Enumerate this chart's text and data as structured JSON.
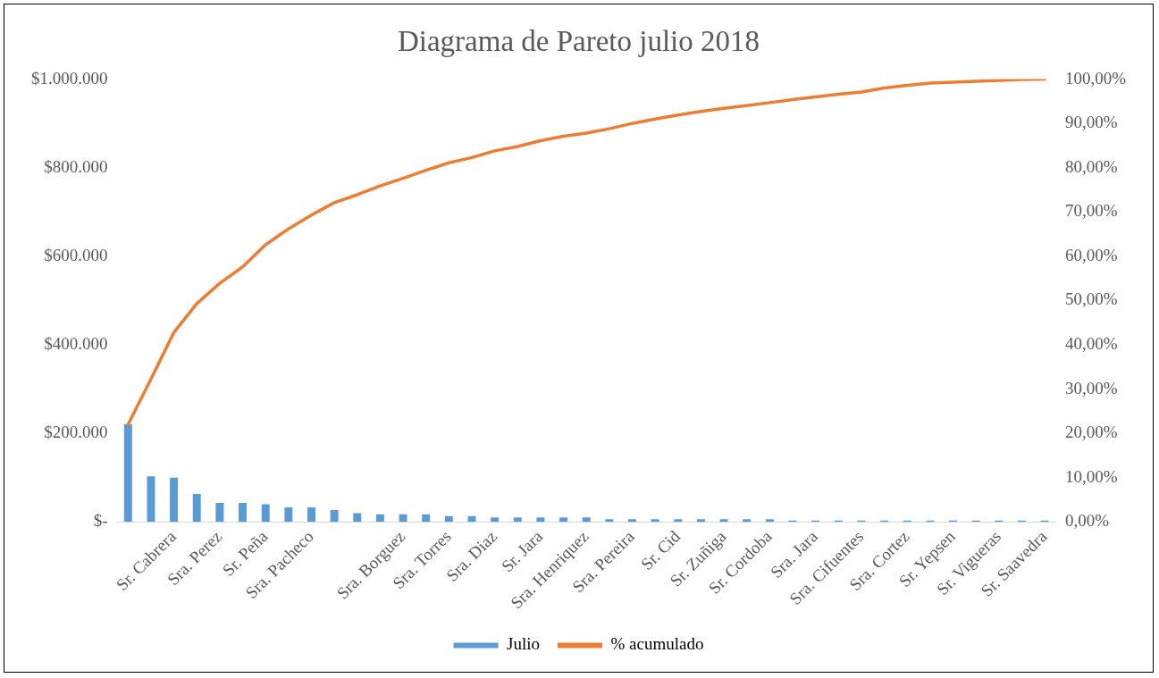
{
  "chart_data": {
    "type": "bar",
    "title": "Diagrama de Pareto julio 2018",
    "categories": [
      null,
      null,
      "Sr. Cabrera",
      null,
      "Sra. Perez",
      null,
      "Sr. Peña",
      null,
      "Sra. Pacheco",
      null,
      null,
      null,
      "Sra. Borguez",
      null,
      "Sra. Torres",
      null,
      "Sra. Diaz",
      null,
      "Sr. Jara",
      null,
      "Sra. Henriquez",
      null,
      "Sra. Pereira",
      null,
      "Sr. Cid",
      null,
      "Sr. Zuñiga",
      null,
      "Sr. Cordoba",
      null,
      "Sra. Jara",
      null,
      "Sra. Cifuentes",
      null,
      "Sra. Cortez",
      null,
      "Sr. Yepsen",
      null,
      "Sr. Vigueras",
      null,
      "Sr. Saavedra"
    ],
    "series": [
      {
        "name": "Julio",
        "color": "#5b9bd5",
        "values": [
          221000,
          103000,
          100000,
          63000,
          43000,
          43000,
          40000,
          33000,
          33000,
          27000,
          20000,
          17000,
          17000,
          17000,
          13000,
          13000,
          10000,
          10000,
          10000,
          10000,
          10000,
          6000,
          6000,
          6000,
          6000,
          6000,
          6000,
          6000,
          6000,
          3000,
          3000,
          3000,
          3000,
          3000,
          3000,
          3000,
          3000,
          3000,
          3000,
          3000,
          3000
        ]
      },
      {
        "name": "% acumulado",
        "type": "line",
        "axis": "y2",
        "color": "#ed7d31",
        "values": [
          22,
          32.3,
          42.8,
          49.3,
          53.9,
          57.6,
          62.6,
          66.2,
          69.3,
          72.1,
          73.9,
          75.9,
          77.6,
          79.4,
          81.1,
          82.3,
          83.8,
          84.8,
          86.1,
          87.1,
          87.8,
          88.8,
          90.0,
          91.0,
          91.9,
          92.7,
          93.4,
          94.0,
          94.7,
          95.4,
          96.0,
          96.6,
          97.1,
          98.0,
          98.6,
          99.1,
          99.3,
          99.5,
          99.7,
          99.9,
          100
        ]
      }
    ],
    "ylim": [
      0,
      1000000
    ],
    "yticks": [
      {
        "value": 0,
        "label": "$-"
      },
      {
        "value": 200000,
        "label": "$200.000"
      },
      {
        "value": 400000,
        "label": "$400.000"
      },
      {
        "value": 600000,
        "label": "$600.000"
      },
      {
        "value": 800000,
        "label": "$800.000"
      },
      {
        "value": 1000000,
        "label": "$1.000.000"
      }
    ],
    "y2lim": [
      0,
      100
    ],
    "y2ticks": [
      {
        "value": 0,
        "label": "0,00%"
      },
      {
        "value": 10,
        "label": "10,00%"
      },
      {
        "value": 20,
        "label": "20,00%"
      },
      {
        "value": 30,
        "label": "30,00%"
      },
      {
        "value": 40,
        "label": "40,00%"
      },
      {
        "value": 50,
        "label": "50,00%"
      },
      {
        "value": 60,
        "label": "60,00%"
      },
      {
        "value": 70,
        "label": "70,00%"
      },
      {
        "value": 80,
        "label": "80,00%"
      },
      {
        "value": 90,
        "label": "90,00%"
      },
      {
        "value": 100,
        "label": "100,00%"
      }
    ],
    "grid": false,
    "legend": "bottom",
    "marker": "none",
    "line_style": "solid"
  }
}
